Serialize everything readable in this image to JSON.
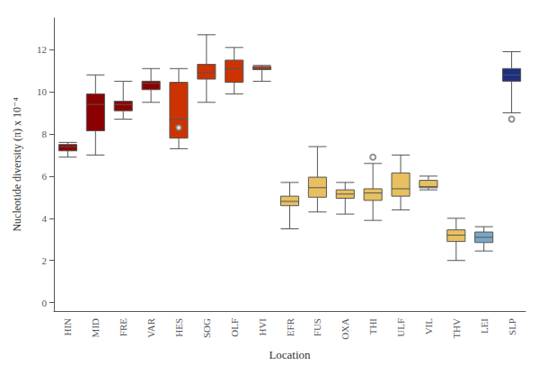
{
  "chart_data": {
    "type": "box",
    "xlabel": "Location",
    "ylabel": "Nucleotide diversity (π) x 10⁻⁴",
    "categories": [
      "HIN",
      "MID",
      "FRE",
      "VAR",
      "HES",
      "SOG",
      "OLF",
      "HVI",
      "EFR",
      "FUS",
      "OXA",
      "THI",
      "ULF",
      "VIL",
      "THV",
      "LEI",
      "SLP"
    ],
    "colors": [
      "#8B0000",
      "#8B0000",
      "#8B0000",
      "#8B0000",
      "#CC3300",
      "#CC3300",
      "#CC3300",
      "#CC3300",
      "#E8C060",
      "#E8C060",
      "#E8C060",
      "#E8C060",
      "#E8C060",
      "#E8C060",
      "#E8C060",
      "#7BA7C7",
      "#1C2F80"
    ],
    "whislo": [
      6.9,
      7.0,
      8.7,
      9.5,
      7.3,
      9.5,
      9.9,
      10.5,
      3.5,
      4.3,
      4.2,
      3.9,
      4.4,
      5.35,
      2.0,
      2.45,
      9.0
    ],
    "q1": [
      7.2,
      8.15,
      9.1,
      10.1,
      7.8,
      10.6,
      10.45,
      11.05,
      4.6,
      5.0,
      4.95,
      4.85,
      5.05,
      5.45,
      2.9,
      2.85,
      10.5
    ],
    "med": [
      7.4,
      9.4,
      9.4,
      10.4,
      8.7,
      10.9,
      11.1,
      11.1,
      4.8,
      5.45,
      5.15,
      5.2,
      5.4,
      5.5,
      3.2,
      3.1,
      10.8
    ],
    "q3": [
      7.5,
      9.9,
      9.55,
      10.5,
      10.45,
      11.3,
      11.5,
      11.2,
      5.05,
      5.95,
      5.35,
      5.4,
      6.15,
      5.8,
      3.45,
      3.35,
      11.1
    ],
    "whishi": [
      7.6,
      10.8,
      10.5,
      11.1,
      11.1,
      12.7,
      12.1,
      11.25,
      5.7,
      7.4,
      5.7,
      6.6,
      7.0,
      6.0,
      4.0,
      3.6,
      11.9
    ],
    "fliers": [
      [],
      [],
      [],
      [],
      [
        8.3
      ],
      [],
      [],
      [],
      [],
      [],
      [],
      [
        6.9
      ],
      [],
      [],
      [],
      [],
      [
        8.7
      ]
    ],
    "ylim": [
      -0.4,
      13.5
    ],
    "yticks": [
      0,
      2,
      4,
      6,
      8,
      10,
      12
    ],
    "grid": false
  }
}
